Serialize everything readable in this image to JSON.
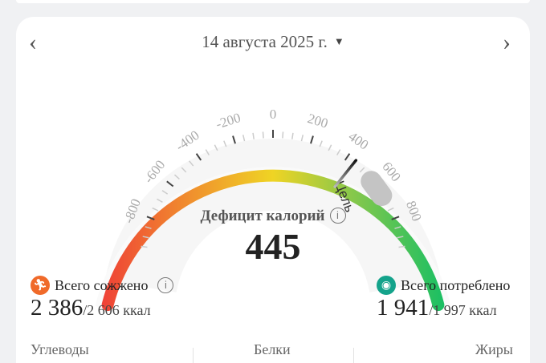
{
  "header": {
    "date": "14 августа 2025 г.",
    "prev_icon": "chevron-left-icon",
    "next_icon": "chevron-right-icon",
    "dropdown_icon": "triangle-down-icon"
  },
  "gauge": {
    "tick_labels": [
      "-800",
      "-600",
      "-400",
      "-200",
      "0",
      "200",
      "400",
      "600",
      "800"
    ],
    "value": 445,
    "goal_label": "Цель",
    "colors": {
      "start": "#ef4136",
      "mid_left": "#f0962d",
      "middle": "#efd424",
      "mid_right": "#8cc84a",
      "end": "#1bbf63"
    }
  },
  "deficit": {
    "label": "Дефицит калорий",
    "info_icon": "i",
    "value": "445"
  },
  "burned": {
    "label": "Всего сожжено",
    "value": "2 386",
    "total": "/2 606 ккал",
    "icon": "running-icon",
    "color": "#f06a2a"
  },
  "consumed": {
    "label": "Всего потреблено",
    "value": "1 941",
    "total": "/1 997 ккал",
    "icon": "food-bowl-icon",
    "color": "#14a38b"
  },
  "macros": [
    "Углеводы",
    "Белки",
    "Жиры"
  ]
}
